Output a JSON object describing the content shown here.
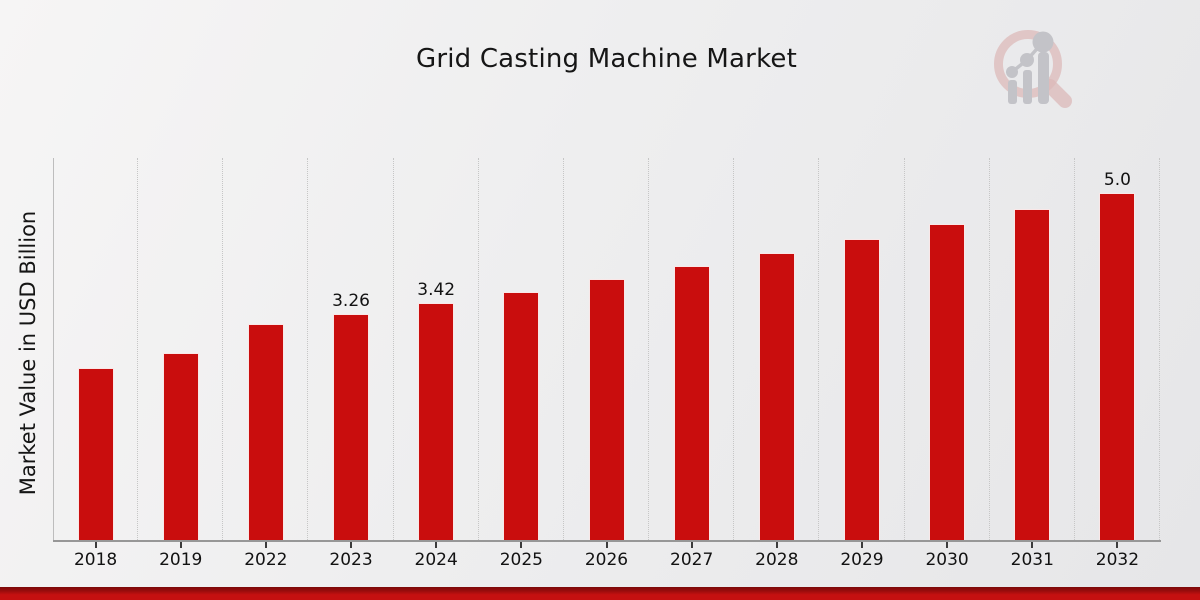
{
  "page_title": "Grid Casting Machine Market",
  "chart_data": {
    "type": "bar",
    "title": "Grid Casting Machine Market",
    "xlabel": "",
    "ylabel": "Market Value in USD Billion",
    "categories": [
      "2018",
      "2019",
      "2022",
      "2023",
      "2024",
      "2025",
      "2026",
      "2027",
      "2028",
      "2029",
      "2030",
      "2031",
      "2032"
    ],
    "values": [
      2.48,
      2.7,
      3.12,
      3.26,
      3.42,
      3.58,
      3.76,
      3.95,
      4.14,
      4.34,
      4.56,
      4.78,
      5.0
    ],
    "bar_labels": [
      "",
      "",
      "",
      "3.26",
      "3.42",
      "",
      "",
      "",
      "",
      "",
      "",
      "",
      "5.0"
    ],
    "series": [
      {
        "name": "Market Value",
        "values": [
          2.48,
          2.7,
          3.12,
          3.26,
          3.42,
          3.58,
          3.76,
          3.95,
          4.14,
          4.34,
          4.56,
          4.78,
          5.0
        ]
      }
    ],
    "ylim": [
      0,
      5.51
    ],
    "bar_color": "#c90d0d",
    "grid": "vertical dotted lines between categories, no horizontal grid",
    "legend": "none",
    "y_tick_labels": "none shown"
  },
  "branding": {
    "logo_name": "magnifier-bar-chart-watermark"
  },
  "colors": {
    "bar": "#c90d0d",
    "footer_banner": "#c51010",
    "footer_banner_dark": "#7d0909",
    "gridline": "#c6c6c6",
    "axis_line": "#979797",
    "text": "#121212",
    "background_light": "#f6f5f5",
    "background_dark": "#e6e6e8",
    "logo_ring": "#dcb9b9",
    "logo_bars": "#c3c3c8"
  }
}
